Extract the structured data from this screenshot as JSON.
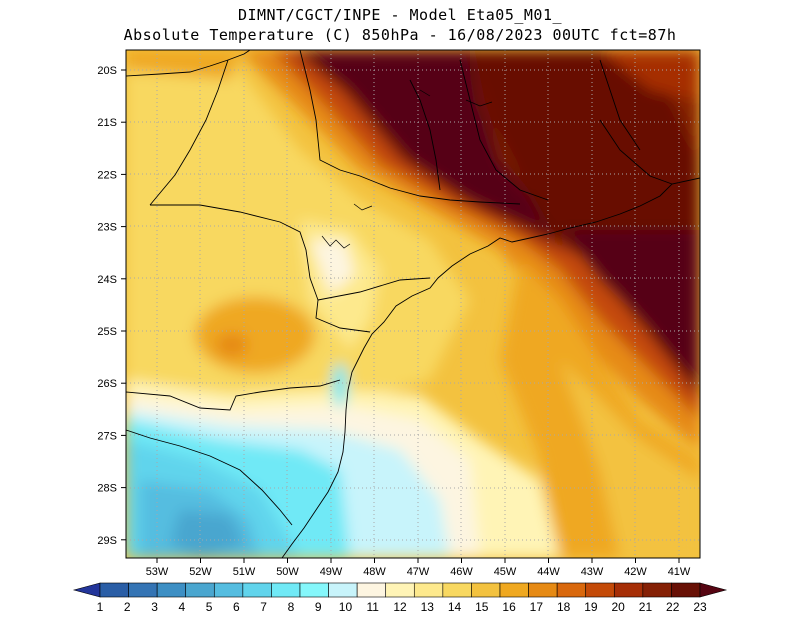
{
  "header": {
    "line1": "DIMNT/CGCT/INPE -  Model Eta05_M01_",
    "line2": "Absolute Temperature (C) 850hPa -  16/08/2023 00UTC fct=87h"
  },
  "map": {
    "lat_labels": [
      "20S",
      "21S",
      "22S",
      "23S",
      "24S",
      "25S",
      "26S",
      "27S",
      "28S",
      "29S"
    ],
    "lon_labels": [
      "53W",
      "52W",
      "51W",
      "50W",
      "49W",
      "48W",
      "47W",
      "46W",
      "45W",
      "44W",
      "43W",
      "42W",
      "41W"
    ]
  },
  "colorbar": {
    "labels": [
      "1",
      "2",
      "3",
      "4",
      "5",
      "6",
      "7",
      "8",
      "9",
      "10",
      "11",
      "12",
      "13",
      "14",
      "15",
      "16",
      "17",
      "18",
      "19",
      "20",
      "21",
      "22",
      "23"
    ],
    "colors": [
      "#23359a",
      "#2a5ea6",
      "#3474b4",
      "#3d8fc4",
      "#4aa6cf",
      "#55bde0",
      "#61d4ec",
      "#70e9f6",
      "#85f7fb",
      "#c8f4fb",
      "#fdf5e1",
      "#fff4b6",
      "#fde98d",
      "#f8d860",
      "#f3c23f",
      "#efa820",
      "#e68a14",
      "#d9680d",
      "#c44a08",
      "#a62e06",
      "#852005",
      "#681005",
      "#560512"
    ]
  }
}
